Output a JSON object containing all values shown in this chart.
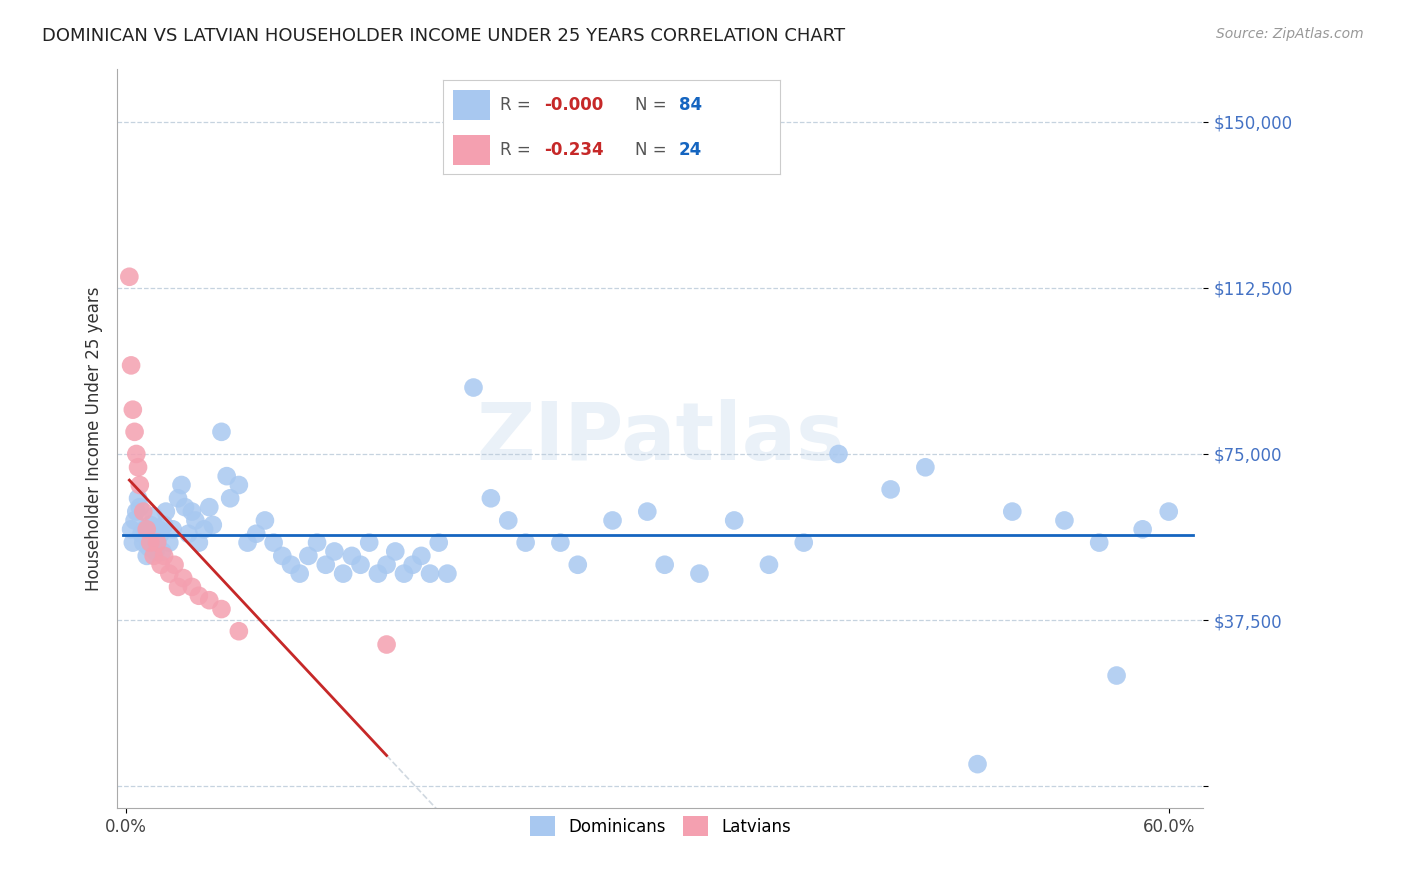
{
  "title": "DOMINICAN VS LATVIAN HOUSEHOLDER INCOME UNDER 25 YEARS CORRELATION CHART",
  "source": "Source: ZipAtlas.com",
  "ylabel": "Householder Income Under 25 years",
  "xlim": [
    -0.005,
    0.62
  ],
  "ylim": [
    -5000,
    162000
  ],
  "yticks": [
    0,
    37500,
    75000,
    112500,
    150000
  ],
  "ytick_labels": [
    "",
    "$37,500",
    "$75,000",
    "$112,500",
    "$150,000"
  ],
  "xtick_left_label": "0.0%",
  "xtick_right_label": "60.0%",
  "dominican_color": "#a8c8f0",
  "latvian_color": "#f4a0b0",
  "dominican_line_color": "#1565c0",
  "latvian_line_color": "#c62828",
  "latvian_dashed_color": "#d0d8e0",
  "legend_R1": "-0.000",
  "legend_N1": "84",
  "legend_R2": "-0.234",
  "legend_N2": "24",
  "watermark": "ZIPatlas",
  "dominicans_x": [
    0.003,
    0.004,
    0.005,
    0.006,
    0.007,
    0.008,
    0.009,
    0.01,
    0.011,
    0.012,
    0.013,
    0.014,
    0.015,
    0.016,
    0.017,
    0.018,
    0.019,
    0.02,
    0.021,
    0.022,
    0.023,
    0.025,
    0.027,
    0.03,
    0.032,
    0.034,
    0.036,
    0.038,
    0.04,
    0.042,
    0.045,
    0.048,
    0.05,
    0.055,
    0.058,
    0.06,
    0.065,
    0.07,
    0.075,
    0.08,
    0.085,
    0.09,
    0.095,
    0.1,
    0.105,
    0.11,
    0.115,
    0.12,
    0.125,
    0.13,
    0.135,
    0.14,
    0.145,
    0.15,
    0.155,
    0.16,
    0.165,
    0.17,
    0.175,
    0.18,
    0.185,
    0.2,
    0.21,
    0.22,
    0.23,
    0.25,
    0.26,
    0.28,
    0.3,
    0.31,
    0.33,
    0.35,
    0.37,
    0.39,
    0.41,
    0.44,
    0.46,
    0.49,
    0.51,
    0.54,
    0.56,
    0.57,
    0.585,
    0.6
  ],
  "dominicans_y": [
    58000,
    55000,
    60000,
    62000,
    65000,
    63000,
    57000,
    55000,
    58000,
    52000,
    54000,
    59000,
    56000,
    61000,
    53000,
    55000,
    58000,
    57000,
    53000,
    59000,
    62000,
    55000,
    58000,
    65000,
    68000,
    63000,
    57000,
    62000,
    60000,
    55000,
    58000,
    63000,
    59000,
    80000,
    70000,
    65000,
    68000,
    55000,
    57000,
    60000,
    55000,
    52000,
    50000,
    48000,
    52000,
    55000,
    50000,
    53000,
    48000,
    52000,
    50000,
    55000,
    48000,
    50000,
    53000,
    48000,
    50000,
    52000,
    48000,
    55000,
    48000,
    90000,
    65000,
    60000,
    55000,
    55000,
    50000,
    60000,
    62000,
    50000,
    48000,
    60000,
    50000,
    55000,
    75000,
    67000,
    72000,
    5000,
    62000,
    60000,
    55000,
    25000,
    58000,
    62000
  ],
  "latvians_x": [
    0.002,
    0.003,
    0.004,
    0.005,
    0.006,
    0.007,
    0.008,
    0.01,
    0.012,
    0.014,
    0.016,
    0.018,
    0.02,
    0.022,
    0.025,
    0.028,
    0.03,
    0.033,
    0.038,
    0.042,
    0.048,
    0.055,
    0.065,
    0.15
  ],
  "latvians_y": [
    115000,
    95000,
    85000,
    80000,
    75000,
    72000,
    68000,
    62000,
    58000,
    55000,
    52000,
    55000,
    50000,
    52000,
    48000,
    50000,
    45000,
    47000,
    45000,
    43000,
    42000,
    40000,
    35000,
    32000
  ]
}
